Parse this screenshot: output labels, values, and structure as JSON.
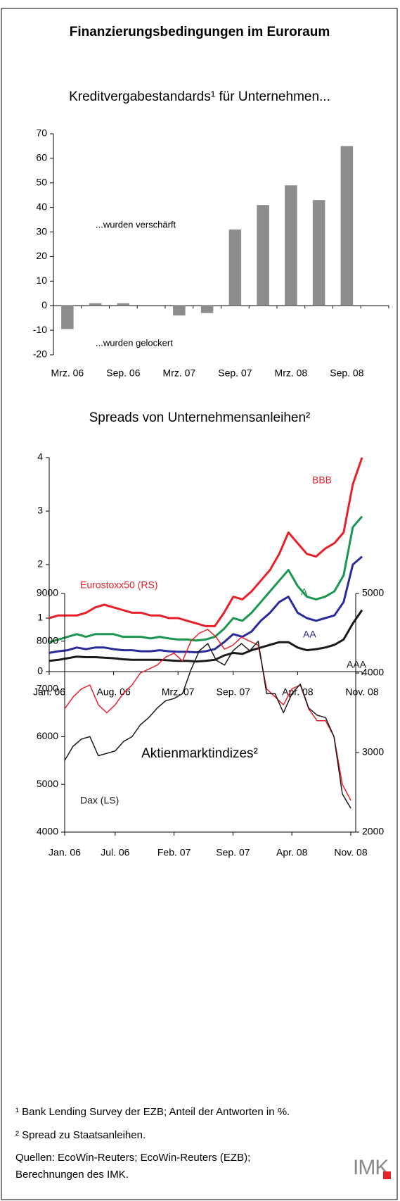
{
  "title": "Finanzierungsbedingungen im Euroraum",
  "chart_data": [
    {
      "type": "bar",
      "title": "Kreditvergabestandards¹ für Unternehmen...",
      "categories": [
        "Mrz. 06",
        null,
        "Sep. 06",
        null,
        "Mrz. 07",
        null,
        "Sep. 07",
        null,
        "Mrz. 08",
        null,
        "Sep. 08",
        null
      ],
      "values": [
        -9.5,
        1,
        1,
        0,
        -4,
        -3,
        31,
        41,
        49,
        43,
        65,
        null
      ],
      "color": "#8c8c8c",
      "ylim": [
        -20,
        70
      ],
      "yticks": [
        -20,
        -10,
        0,
        10,
        20,
        30,
        40,
        50,
        60,
        70
      ],
      "annotations": [
        "...wurden verschärft",
        "...wurden gelockert"
      ]
    },
    {
      "type": "line",
      "title": "Spreads von Unternehmensanleihen²",
      "x": [
        "2006-01",
        "2006-02",
        "2006-03",
        "2006-04",
        "2006-05",
        "2006-06",
        "2006-07",
        "2006-08",
        "2006-09",
        "2006-10",
        "2006-11",
        "2006-12",
        "2007-01",
        "2007-02",
        "2007-03",
        "2007-04",
        "2007-05",
        "2007-06",
        "2007-07",
        "2007-08",
        "2007-09",
        "2007-10",
        "2007-11",
        "2007-12",
        "2008-01",
        "2008-02",
        "2008-03",
        "2008-04",
        "2008-05",
        "2008-06",
        "2008-07",
        "2008-08",
        "2008-09",
        "2008-10",
        "2008-11"
      ],
      "series": [
        {
          "name": "BBB",
          "color": "#e8202a",
          "values": [
            1.0,
            1.05,
            1.05,
            1.05,
            1.1,
            1.2,
            1.25,
            1.2,
            1.15,
            1.1,
            1.1,
            1.05,
            1.05,
            1.0,
            1.0,
            0.95,
            0.9,
            0.85,
            0.85,
            1.1,
            1.4,
            1.35,
            1.5,
            1.7,
            1.9,
            2.2,
            2.6,
            2.4,
            2.2,
            2.15,
            2.3,
            2.4,
            2.6,
            3.5,
            4.0
          ]
        },
        {
          "name": "A",
          "color": "#1a9650",
          "values": [
            0.55,
            0.6,
            0.65,
            0.7,
            0.65,
            0.7,
            0.7,
            0.7,
            0.65,
            0.65,
            0.65,
            0.62,
            0.65,
            0.62,
            0.6,
            0.6,
            0.58,
            0.6,
            0.65,
            0.8,
            1.0,
            0.95,
            1.1,
            1.3,
            1.5,
            1.7,
            1.9,
            1.6,
            1.4,
            1.35,
            1.4,
            1.5,
            1.8,
            2.7,
            2.9
          ]
        },
        {
          "name": "AA",
          "color": "#2a2a9a",
          "values": [
            0.35,
            0.38,
            0.4,
            0.45,
            0.42,
            0.45,
            0.45,
            0.42,
            0.4,
            0.4,
            0.38,
            0.38,
            0.4,
            0.38,
            0.37,
            0.37,
            0.36,
            0.38,
            0.42,
            0.55,
            0.7,
            0.65,
            0.75,
            0.95,
            1.1,
            1.3,
            1.4,
            1.1,
            1.0,
            0.95,
            1.0,
            1.05,
            1.3,
            2.0,
            2.15
          ]
        },
        {
          "name": "AAA",
          "color": "#1a1a1a",
          "values": [
            0.2,
            0.22,
            0.25,
            0.28,
            0.27,
            0.27,
            0.26,
            0.25,
            0.23,
            0.22,
            0.22,
            0.22,
            0.22,
            0.21,
            0.2,
            0.2,
            0.19,
            0.2,
            0.22,
            0.3,
            0.35,
            0.33,
            0.4,
            0.45,
            0.5,
            0.55,
            0.55,
            0.45,
            0.4,
            0.42,
            0.45,
            0.5,
            0.6,
            0.9,
            1.15
          ]
        }
      ],
      "xlim": [
        "2006-01",
        "2008-11"
      ],
      "xticks": [
        {
          "value": "2006-01",
          "label": "Jan. 06"
        },
        {
          "value": "2006-08",
          "label": "Aug. 06"
        },
        {
          "value": "2007-03",
          "label": "Mrz. 07"
        },
        {
          "value": "2007-09",
          "label": "Sep. 07"
        },
        {
          "value": "2008-04",
          "label": "Apr. 08"
        },
        {
          "value": "2008-11",
          "label": "Nov. 08"
        }
      ],
      "ylim": [
        0,
        4
      ],
      "yticks": [
        0,
        1,
        2,
        3,
        4
      ]
    },
    {
      "type": "line",
      "title": "Aktienmarktindizes²",
      "x": [
        "2006-01",
        "2006-02",
        "2006-03",
        "2006-04",
        "2006-05",
        "2006-06",
        "2006-07",
        "2006-08",
        "2006-09",
        "2006-10",
        "2006-11",
        "2006-12",
        "2007-01",
        "2007-02",
        "2007-03",
        "2007-04",
        "2007-05",
        "2007-06",
        "2007-07",
        "2007-08",
        "2007-09",
        "2007-10",
        "2007-11",
        "2007-12",
        "2008-01",
        "2008-02",
        "2008-03",
        "2008-04",
        "2008-05",
        "2008-06",
        "2008-07",
        "2008-08",
        "2008-09",
        "2008-10",
        "2008-11"
      ],
      "series": [
        {
          "name": "Eurostoxx50 (RS)",
          "color": "#e8202a",
          "axis": "y2",
          "values": [
            3550,
            3700,
            3800,
            3850,
            3600,
            3500,
            3600,
            3750,
            3850,
            4000,
            4050,
            4100,
            4200,
            4250,
            4150,
            4400,
            4500,
            4550,
            4450,
            4300,
            4350,
            4450,
            4400,
            4350,
            3800,
            3700,
            3600,
            3800,
            3850,
            3550,
            3400,
            3400,
            3200,
            2600,
            2400
          ]
        },
        {
          "name": "Dax (LS)",
          "color": "#1a1a1a",
          "values": [
            5500,
            5800,
            5950,
            6000,
            5600,
            5650,
            5700,
            5900,
            6000,
            6250,
            6400,
            6600,
            6750,
            6800,
            6900,
            7400,
            7800,
            7950,
            7600,
            7500,
            7800,
            7950,
            7800,
            8000,
            6900,
            6900,
            6500,
            6900,
            7100,
            6600,
            6450,
            6400,
            6000,
            4800,
            4500
          ]
        }
      ],
      "xlim": [
        "2006-01",
        "2008-11"
      ],
      "xticks": [
        {
          "value": "2006-01",
          "label": "Jan. 06"
        },
        {
          "value": "2006-07",
          "label": "Jul. 06"
        },
        {
          "value": "2007-02",
          "label": "Feb. 07"
        },
        {
          "value": "2007-09",
          "label": "Sep. 07"
        },
        {
          "value": "2008-04",
          "label": "Apr. 08"
        },
        {
          "value": "2008-11",
          "label": "Nov. 08"
        }
      ],
      "ylim": [
        4000,
        9000
      ],
      "yticks": [
        4000,
        5000,
        6000,
        7000,
        8000,
        9000
      ],
      "y2lim": [
        2000,
        5000
      ],
      "y2ticks": [
        2000,
        3000,
        4000,
        5000
      ]
    }
  ],
  "footnotes": [
    "¹ Bank Lending Survey der EZB; Anteil der Antworten in %.",
    "² Spread zu Staatsanleihen."
  ],
  "sources": [
    "Quellen: EcoWin-Reuters; EcoWin-Reuters (EZB);",
    "Berechnungen des IMK."
  ],
  "logo": "IMK"
}
